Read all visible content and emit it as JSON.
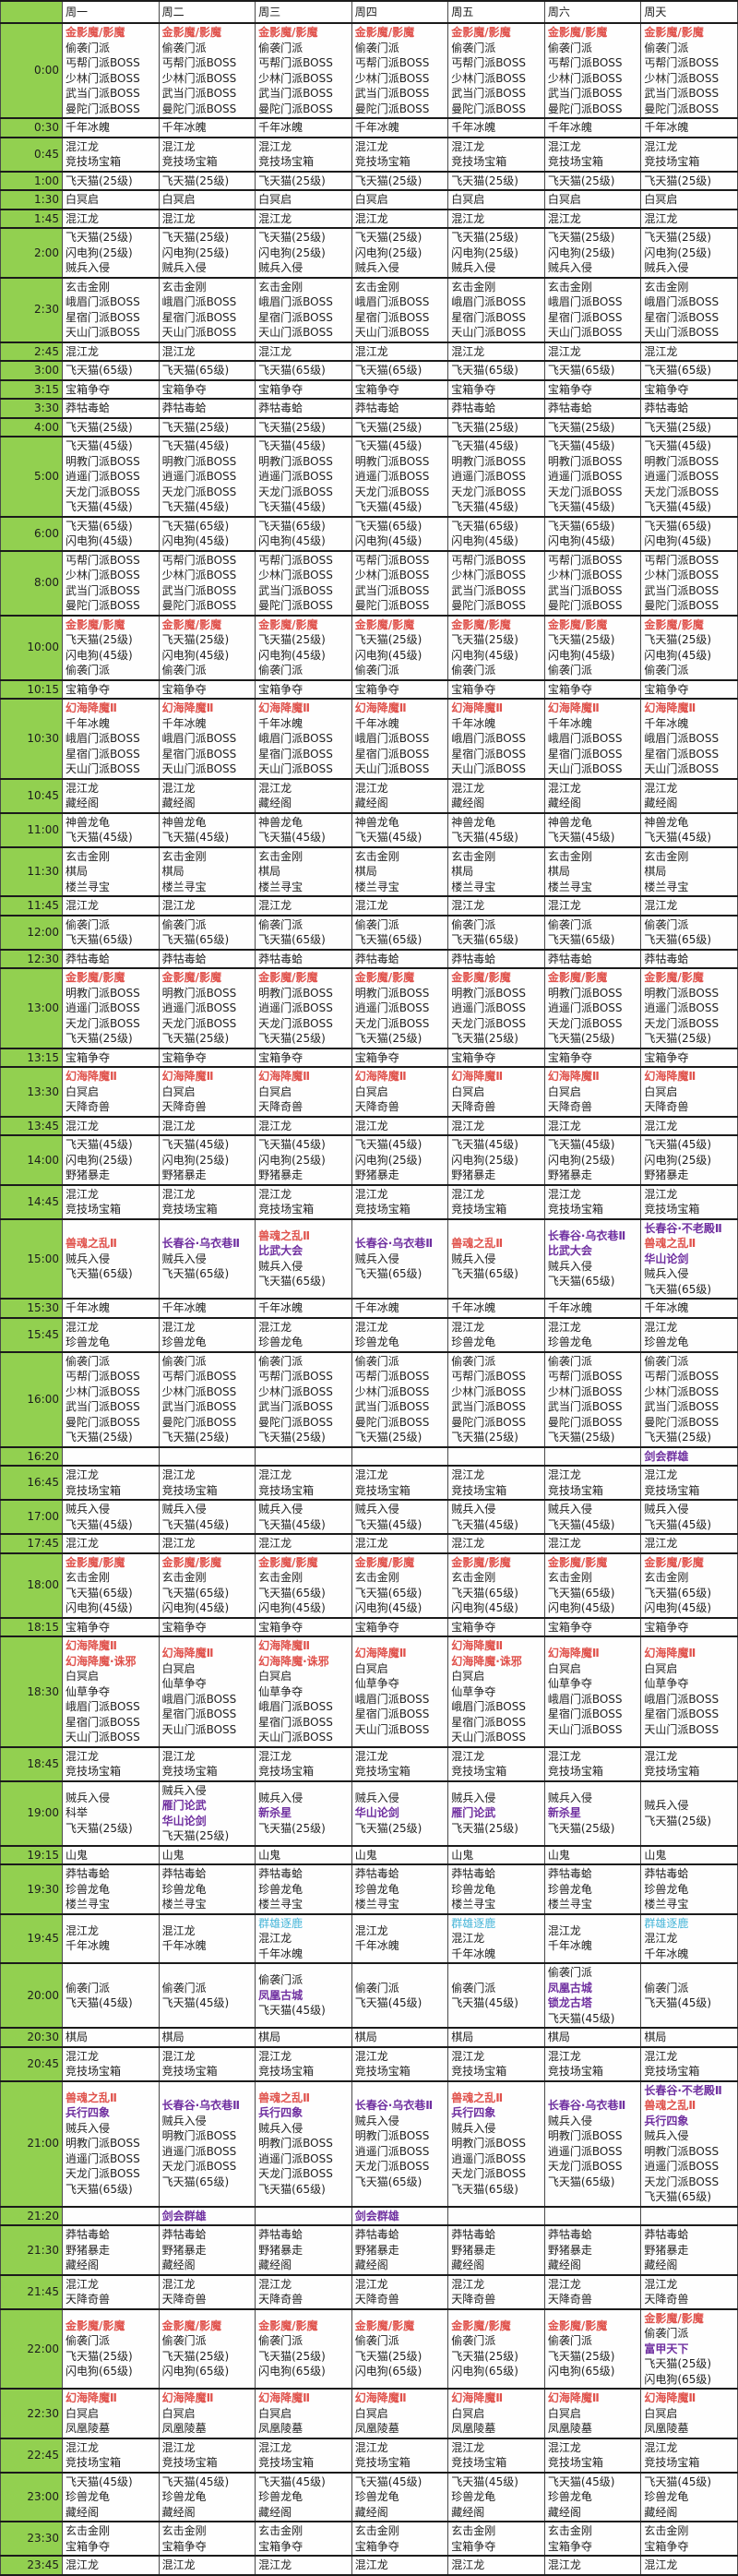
{
  "colors": {
    "time_column_bg": "#92d050",
    "event_red": "#e0524c",
    "event_purple": "#7030a0",
    "event_blue": "#45b5d8",
    "grid_line": "#1b1b1b",
    "text": "#222222"
  },
  "legend_color_prefixes": {
    "r": "red",
    "p": "purple",
    "b": "blue"
  },
  "days": [
    "周一",
    "周二",
    "周三",
    "周四",
    "周五",
    "周六",
    "周天"
  ],
  "rows": [
    {
      "time": "0:00",
      "same": [
        "r|金影魔/影魔",
        "偷袭门派",
        "丐帮门派BOSS",
        "少林门派BOSS",
        "武当门派BOSS",
        "曼陀门派BOSS"
      ]
    },
    {
      "time": "0:30",
      "same": [
        "千年冰魄"
      ]
    },
    {
      "time": "0:45",
      "same": [
        "混江龙",
        "竞技场宝箱"
      ]
    },
    {
      "time": "1:00",
      "same": [
        "飞天猫(25级)"
      ]
    },
    {
      "time": "1:30",
      "same": [
        "白冥启"
      ]
    },
    {
      "time": "1:45",
      "same": [
        "混江龙"
      ]
    },
    {
      "time": "2:00",
      "same": [
        "飞天猫(25级)",
        "闪电狗(25级)",
        "贼兵入侵"
      ]
    },
    {
      "time": "2:30",
      "same": [
        "玄击金刚",
        "峨眉门派BOSS",
        "星宿门派BOSS",
        "天山门派BOSS"
      ]
    },
    {
      "time": "2:45",
      "same": [
        "混江龙"
      ]
    },
    {
      "time": "3:00",
      "same": [
        "飞天猫(65级)"
      ]
    },
    {
      "time": "3:15",
      "same": [
        "宝箱争夺"
      ]
    },
    {
      "time": "3:30",
      "same": [
        "莽牯毒蛤"
      ]
    },
    {
      "time": "4:00",
      "same": [
        "飞天猫(25级)"
      ]
    },
    {
      "time": "5:00",
      "same": [
        "飞天猫(45级)",
        "明教门派BOSS",
        "逍遥门派BOSS",
        "天龙门派BOSS",
        "飞天猫(45级)"
      ]
    },
    {
      "time": "6:00",
      "same": [
        "飞天猫(65级)",
        "闪电狗(45级)"
      ]
    },
    {
      "time": "8:00",
      "same": [
        "丐帮门派BOSS",
        "少林门派BOSS",
        "武当门派BOSS",
        "曼陀门派BOSS"
      ]
    },
    {
      "time": "10:00",
      "same": [
        "r|金影魔/影魔",
        "飞天猫(25级)",
        "闪电狗(45级)",
        "偷袭门派"
      ]
    },
    {
      "time": "10:15",
      "same": [
        "宝箱争夺"
      ]
    },
    {
      "time": "10:30",
      "same": [
        "r|幻海降魔Ⅱ",
        "千年冰魄",
        "峨眉门派BOSS",
        "星宿门派BOSS",
        "天山门派BOSS"
      ]
    },
    {
      "time": "10:45",
      "same": [
        "混江龙",
        "藏经阁"
      ]
    },
    {
      "time": "11:00",
      "same": [
        "神兽龙龟",
        "飞天猫(45级)"
      ]
    },
    {
      "time": "11:30",
      "same": [
        "玄击金刚",
        "棋局",
        "楼兰寻宝"
      ]
    },
    {
      "time": "11:45",
      "same": [
        "混江龙"
      ]
    },
    {
      "time": "12:00",
      "same": [
        "偷袭门派",
        "飞天猫(65级)"
      ]
    },
    {
      "time": "12:30",
      "same": [
        "莽牯毒蛤"
      ]
    },
    {
      "time": "13:00",
      "same": [
        "r|金影魔/影魔",
        "明教门派BOSS",
        "逍遥门派BOSS",
        "天龙门派BOSS",
        "飞天猫(25级)"
      ]
    },
    {
      "time": "13:15",
      "same": [
        "宝箱争夺"
      ]
    },
    {
      "time": "13:30",
      "same": [
        "r|幻海降魔Ⅱ",
        "白冥启",
        "天降奇兽"
      ]
    },
    {
      "time": "13:45",
      "same": [
        "混江龙"
      ]
    },
    {
      "time": "14:00",
      "same": [
        "飞天猫(45级)",
        "闪电狗(25级)",
        "野猪暴走"
      ]
    },
    {
      "time": "14:45",
      "same": [
        "混江龙",
        "竞技场宝箱"
      ]
    },
    {
      "time": "15:00",
      "days": [
        [
          "r|兽魂之乱Ⅱ",
          "贼兵入侵",
          "飞天猫(65级)"
        ],
        [
          "p|长春谷·乌衣巷Ⅱ",
          "贼兵入侵",
          "飞天猫(65级)"
        ],
        [
          "r|兽魂之乱Ⅱ",
          "p|比武大会",
          "贼兵入侵",
          "飞天猫(65级)"
        ],
        [
          "p|长春谷·乌衣巷Ⅱ",
          "贼兵入侵",
          "飞天猫(65级)"
        ],
        [
          "r|兽魂之乱Ⅱ",
          "贼兵入侵",
          "飞天猫(65级)"
        ],
        [
          "p|长春谷·乌衣巷Ⅱ",
          "p|比武大会",
          "贼兵入侵",
          "飞天猫(65级)"
        ],
        [
          "p|长春谷·不老殿Ⅱ",
          "r|兽魂之乱Ⅱ",
          "p|华山论剑",
          "贼兵入侵",
          "飞天猫(65级)"
        ]
      ]
    },
    {
      "time": "15:30",
      "same": [
        "千年冰魄"
      ]
    },
    {
      "time": "15:45",
      "same": [
        "混江龙",
        "珍兽龙龟"
      ]
    },
    {
      "time": "16:00",
      "same": [
        "偷袭门派",
        "丐帮门派BOSS",
        "少林门派BOSS",
        "武当门派BOSS",
        "曼陀门派BOSS",
        "飞天猫(25级)"
      ]
    },
    {
      "time": "16:20",
      "days": [
        [],
        [],
        [],
        [],
        [],
        [],
        [
          "p|剑会群雄"
        ]
      ]
    },
    {
      "time": "16:45",
      "same": [
        "混江龙",
        "竞技场宝箱"
      ]
    },
    {
      "time": "17:00",
      "same": [
        "贼兵入侵",
        "飞天猫(45级)"
      ]
    },
    {
      "time": "17:45",
      "same": [
        "混江龙"
      ]
    },
    {
      "time": "18:00",
      "same": [
        "r|金影魔/影魔",
        "玄击金刚",
        "飞天猫(65级)",
        "闪电狗(45级)"
      ]
    },
    {
      "time": "18:15",
      "same": [
        "宝箱争夺"
      ]
    },
    {
      "time": "18:30",
      "days": [
        [
          "r|幻海降魔Ⅱ",
          "r|幻海降魔·诛邪",
          "白冥启",
          "仙草争夺",
          "峨眉门派BOSS",
          "星宿门派BOSS",
          "天山门派BOSS"
        ],
        [
          "r|幻海降魔Ⅱ",
          "白冥启",
          "仙草争夺",
          "峨眉门派BOSS",
          "星宿门派BOSS",
          "天山门派BOSS"
        ],
        [
          "r|幻海降魔Ⅱ",
          "r|幻海降魔·诛邪",
          "白冥启",
          "仙草争夺",
          "峨眉门派BOSS",
          "星宿门派BOSS",
          "天山门派BOSS"
        ],
        [
          "r|幻海降魔Ⅱ",
          "白冥启",
          "仙草争夺",
          "峨眉门派BOSS",
          "星宿门派BOSS",
          "天山门派BOSS"
        ],
        [
          "r|幻海降魔Ⅱ",
          "r|幻海降魔·诛邪",
          "白冥启",
          "仙草争夺",
          "峨眉门派BOSS",
          "星宿门派BOSS",
          "天山门派BOSS"
        ],
        [
          "r|幻海降魔Ⅱ",
          "白冥启",
          "仙草争夺",
          "峨眉门派BOSS",
          "星宿门派BOSS",
          "天山门派BOSS"
        ],
        [
          "r|幻海降魔Ⅱ",
          "白冥启",
          "仙草争夺",
          "峨眉门派BOSS",
          "星宿门派BOSS",
          "天山门派BOSS"
        ]
      ]
    },
    {
      "time": "18:45",
      "same": [
        "混江龙",
        "竞技场宝箱"
      ]
    },
    {
      "time": "19:00",
      "days": [
        [
          "贼兵入侵",
          "科举",
          "飞天猫(25级)"
        ],
        [
          "贼兵入侵",
          "p|雁门论武",
          "p|华山论剑",
          "飞天猫(25级)"
        ],
        [
          "贼兵入侵",
          "p|新杀星",
          "飞天猫(25级)"
        ],
        [
          "贼兵入侵",
          "p|华山论剑",
          "飞天猫(25级)"
        ],
        [
          "贼兵入侵",
          "p|雁门论武",
          "飞天猫(25级)"
        ],
        [
          "贼兵入侵",
          "p|新杀星",
          "飞天猫(25级)"
        ],
        [
          "贼兵入侵",
          "飞天猫(25级)"
        ]
      ]
    },
    {
      "time": "19:15",
      "same": [
        "山鬼"
      ]
    },
    {
      "time": "19:30",
      "same": [
        "莽牯毒蛤",
        "珍兽龙龟",
        "楼兰寻宝"
      ]
    },
    {
      "time": "19:45",
      "days": [
        [
          "混江龙",
          "千年冰魄"
        ],
        [
          "混江龙",
          "千年冰魄"
        ],
        [
          "b|群雄逐鹿",
          "混江龙",
          "千年冰魄"
        ],
        [
          "混江龙",
          "千年冰魄"
        ],
        [
          "b|群雄逐鹿",
          "混江龙",
          "千年冰魄"
        ],
        [
          "混江龙",
          "千年冰魄"
        ],
        [
          "b|群雄逐鹿",
          "混江龙",
          "千年冰魄"
        ]
      ]
    },
    {
      "time": "20:00",
      "days": [
        [
          "偷袭门派",
          "飞天猫(45级)"
        ],
        [
          "偷袭门派",
          "飞天猫(45级)"
        ],
        [
          "偷袭门派",
          "p|凤凰古城",
          "飞天猫(45级)"
        ],
        [
          "偷袭门派",
          "飞天猫(45级)"
        ],
        [
          "偷袭门派",
          "飞天猫(45级)"
        ],
        [
          "偷袭门派",
          "p|凤凰古城",
          "p|锁龙古塔",
          "飞天猫(45级)"
        ],
        [
          "偷袭门派",
          "飞天猫(45级)"
        ]
      ]
    },
    {
      "time": "20:30",
      "same": [
        "棋局"
      ]
    },
    {
      "time": "20:45",
      "same": [
        "混江龙",
        "竞技场宝箱"
      ]
    },
    {
      "time": "21:00",
      "days": [
        [
          "r|兽魂之乱Ⅱ",
          "p|兵行四象",
          "贼兵入侵",
          "明教门派BOSS",
          "逍遥门派BOSS",
          "天龙门派BOSS",
          "飞天猫(65级)"
        ],
        [
          "p|长春谷·乌衣巷Ⅱ",
          "贼兵入侵",
          "明教门派BOSS",
          "逍遥门派BOSS",
          "天龙门派BOSS",
          "飞天猫(65级)"
        ],
        [
          "r|兽魂之乱Ⅱ",
          "p|兵行四象",
          "贼兵入侵",
          "明教门派BOSS",
          "逍遥门派BOSS",
          "天龙门派BOSS",
          "飞天猫(65级)"
        ],
        [
          "p|长春谷·乌衣巷Ⅱ",
          "贼兵入侵",
          "明教门派BOSS",
          "逍遥门派BOSS",
          "天龙门派BOSS",
          "飞天猫(65级)"
        ],
        [
          "r|兽魂之乱Ⅱ",
          "p|兵行四象",
          "贼兵入侵",
          "明教门派BOSS",
          "逍遥门派BOSS",
          "天龙门派BOSS",
          "飞天猫(65级)"
        ],
        [
          "p|长春谷·乌衣巷Ⅱ",
          "贼兵入侵",
          "明教门派BOSS",
          "逍遥门派BOSS",
          "天龙门派BOSS",
          "飞天猫(65级)"
        ],
        [
          "p|长春谷·不老殿Ⅱ",
          "r|兽魂之乱Ⅱ",
          "p|兵行四象",
          "贼兵入侵",
          "明教门派BOSS",
          "逍遥门派BOSS",
          "天龙门派BOSS",
          "飞天猫(65级)"
        ]
      ]
    },
    {
      "time": "21:20",
      "days": [
        [],
        [
          "p|剑会群雄"
        ],
        [],
        [
          "p|剑会群雄"
        ],
        [],
        [],
        []
      ]
    },
    {
      "time": "21:30",
      "same": [
        "莽牯毒蛤",
        "野猪暴走",
        "藏经阁"
      ]
    },
    {
      "time": "21:45",
      "same": [
        "混江龙",
        "天降奇兽"
      ]
    },
    {
      "time": "22:00",
      "days": [
        [
          "r|金影魔/影魔",
          "偷袭门派",
          "飞天猫(25级)",
          "闪电狗(65级)"
        ],
        [
          "r|金影魔/影魔",
          "偷袭门派",
          "飞天猫(25级)",
          "闪电狗(65级)"
        ],
        [
          "r|金影魔/影魔",
          "偷袭门派",
          "飞天猫(25级)",
          "闪电狗(65级)"
        ],
        [
          "r|金影魔/影魔",
          "偷袭门派",
          "飞天猫(25级)",
          "闪电狗(65级)"
        ],
        [
          "r|金影魔/影魔",
          "偷袭门派",
          "飞天猫(25级)",
          "闪电狗(65级)"
        ],
        [
          "r|金影魔/影魔",
          "偷袭门派",
          "飞天猫(25级)",
          "闪电狗(65级)"
        ],
        [
          "r|金影魔/影魔",
          "偷袭门派",
          "p|富甲天下",
          "飞天猫(25级)",
          "闪电狗(65级)"
        ]
      ]
    },
    {
      "time": "22:30",
      "same": [
        "r|幻海降魔Ⅱ",
        "白冥启",
        "凤凰陵墓"
      ]
    },
    {
      "time": "22:45",
      "same": [
        "混江龙",
        "竞技场宝箱"
      ]
    },
    {
      "time": "23:00",
      "same": [
        "飞天猫(45级)",
        "珍兽龙龟",
        "藏经阁"
      ]
    },
    {
      "time": "23:30",
      "same": [
        "玄击金刚",
        "宝箱争夺"
      ]
    },
    {
      "time": "23:45",
      "same": [
        "混江龙"
      ]
    }
  ]
}
